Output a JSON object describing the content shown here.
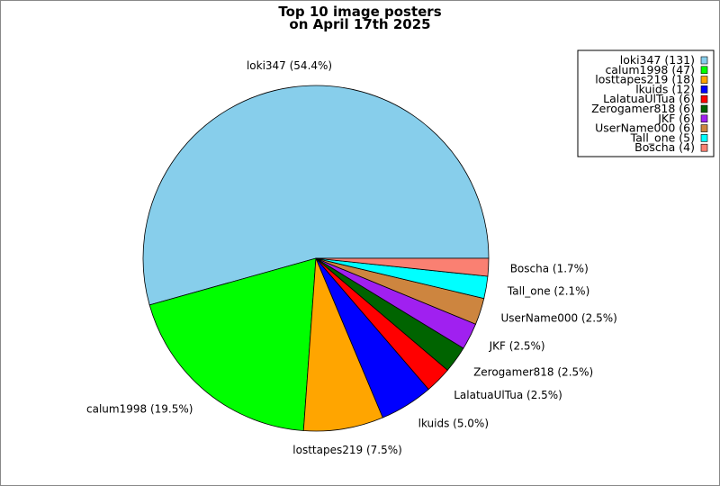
{
  "chart_data": {
    "type": "pie",
    "title": [
      "Top 10 image posters",
      "on April 17th 2025"
    ],
    "start_angle_deg": 0,
    "direction": "counterclockwise",
    "legend_placement": "top-right",
    "slices": [
      {
        "label": "loki347",
        "value": 131,
        "percent_label": "loki347 (54.4%)",
        "legend": "loki347 (131)",
        "color": "#87ceeb"
      },
      {
        "label": "calum1998",
        "value": 47,
        "percent_label": "calum1998 (19.5%)",
        "legend": "calum1998 (47)",
        "color": "#00ff00"
      },
      {
        "label": "losttapes219",
        "value": 18,
        "percent_label": "losttapes219 (7.5%)",
        "legend": "losttapes219 (18)",
        "color": "#ffa500"
      },
      {
        "label": "lkuids",
        "value": 12,
        "percent_label": "lkuids (5.0%)",
        "legend": "lkuids (12)",
        "color": "#0000ff"
      },
      {
        "label": "LalatuaUlTua",
        "value": 6,
        "percent_label": "LalatuaUlTua (2.5%)",
        "legend": "LalatuaUlTua (6)",
        "color": "#ff0000"
      },
      {
        "label": "Zerogamer818",
        "value": 6,
        "percent_label": "Zerogamer818 (2.5%)",
        "legend": "Zerogamer818 (6)",
        "color": "#006400"
      },
      {
        "label": "JKF",
        "value": 6,
        "percent_label": "JKF (2.5%)",
        "legend": "JKF (6)",
        "color": "#a020f0"
      },
      {
        "label": "UserName000",
        "value": 6,
        "percent_label": "UserName000 (2.5%)",
        "legend": "UserName000 (6)",
        "color": "#cd853f"
      },
      {
        "label": "Tall_one",
        "value": 5,
        "percent_label": "Tall_one (2.1%)",
        "legend": "Tall_one (5)",
        "color": "#00ffff"
      },
      {
        "label": "Boscha",
        "value": 4,
        "percent_label": "Boscha (1.7%)",
        "legend": "Boscha (4)",
        "color": "#fa8072"
      }
    ]
  }
}
